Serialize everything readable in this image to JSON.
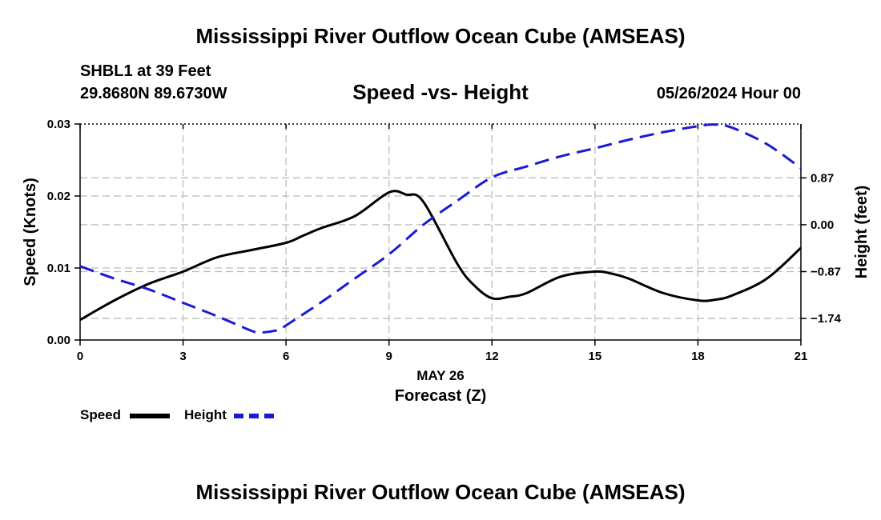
{
  "page": {
    "title_top": "Mississippi River Outflow Ocean Cube (AMSEAS)",
    "title_bottom": "Mississippi River Outflow Ocean Cube (AMSEAS)",
    "station": "SHBL1 at 39 Feet",
    "coords": "29.8680N  89.6730W",
    "subtitle": "Speed -vs- Height",
    "datetime": "05/26/2024 Hour 00"
  },
  "legend": {
    "speed_label": "Speed",
    "height_label": "Height"
  },
  "colors": {
    "speed": "#000000",
    "height": "#1a1ad6",
    "grid": "#bbbbbb"
  },
  "chart_data": {
    "type": "line",
    "title": "Speed -vs- Height",
    "xlabel_date": "MAY 26",
    "xlabel": "Forecast (Z)",
    "ylabel_left": "Speed (Knots)",
    "ylabel_right": "Height (feet)",
    "xlim": [
      0,
      21
    ],
    "x_ticks": [
      0,
      3,
      6,
      9,
      12,
      15,
      18,
      21
    ],
    "x_tick_labels": [
      "0",
      "3",
      "6",
      "9",
      "12",
      "15",
      "18",
      "21"
    ],
    "ylim_left": [
      0,
      0.03
    ],
    "y_left_ticks": [
      0,
      0.01,
      0.02,
      0.03
    ],
    "y_left_tick_labels": [
      "0.00",
      "0.01",
      "0.02",
      "0.03"
    ],
    "ylim_right": [
      -2.14,
      1.87
    ],
    "y_right_ticks": [
      -1.74,
      -0.87,
      0.0,
      0.87
    ],
    "y_right_tick_labels": [
      "−1.74",
      "−0.87",
      "0.00",
      "0.87"
    ],
    "grid": true,
    "series": [
      {
        "name": "Speed",
        "axis": "left",
        "style": "solid",
        "x": [
          0,
          1,
          2,
          3,
          4,
          5,
          6,
          6.5,
          7,
          8,
          9,
          9.5,
          10,
          11,
          11.5,
          12,
          12.5,
          13,
          14,
          15,
          15.5,
          16,
          17,
          18,
          18.5,
          19,
          20,
          21
        ],
        "values": [
          0.0028,
          0.0055,
          0.0078,
          0.0095,
          0.0115,
          0.0125,
          0.0135,
          0.0145,
          0.0155,
          0.0172,
          0.0205,
          0.0202,
          0.0192,
          0.0105,
          0.0075,
          0.0058,
          0.006,
          0.0065,
          0.0088,
          0.0095,
          0.0092,
          0.0085,
          0.0065,
          0.0055,
          0.0056,
          0.0062,
          0.0085,
          0.0128
        ]
      },
      {
        "name": "Height",
        "axis": "right",
        "style": "dashed",
        "x": [
          0,
          1,
          2,
          3,
          4,
          5,
          5.3,
          5.8,
          6,
          7,
          8,
          9,
          10,
          11,
          12,
          13,
          14,
          15,
          16,
          17,
          18,
          18.5,
          19,
          20,
          21
        ],
        "values": [
          -0.77,
          -1.0,
          -1.2,
          -1.45,
          -1.7,
          -1.97,
          -2.0,
          -1.95,
          -1.87,
          -1.45,
          -1.0,
          -0.55,
          0.0,
          0.45,
          0.88,
          1.08,
          1.27,
          1.42,
          1.58,
          1.72,
          1.83,
          1.86,
          1.8,
          1.5,
          1.05
        ]
      }
    ]
  }
}
